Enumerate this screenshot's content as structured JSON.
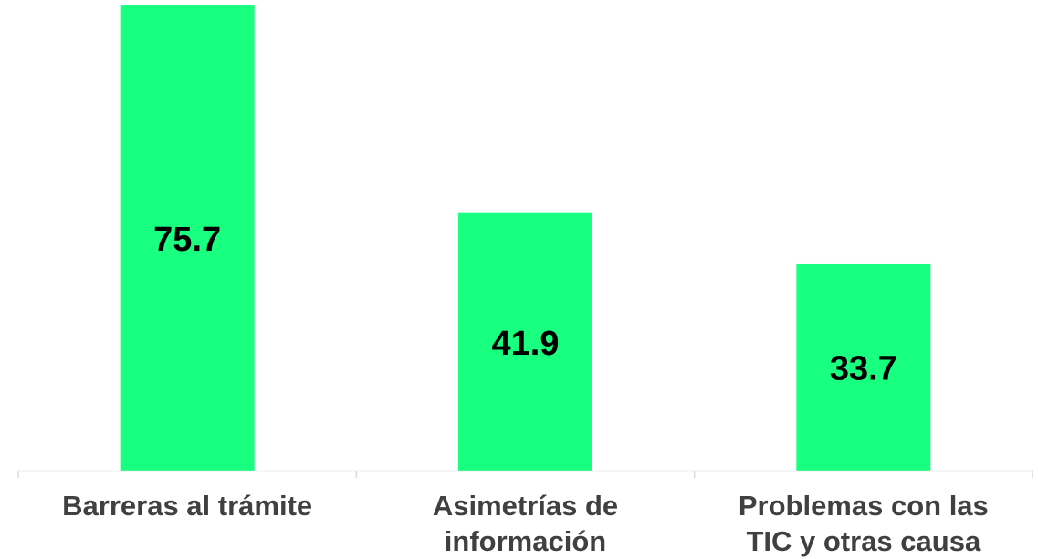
{
  "chart_data": {
    "type": "bar",
    "categories": [
      [
        "Barreras al trámite"
      ],
      [
        "Asimetrías de",
        "información"
      ],
      [
        "Problemas con las",
        "TIC y otras causa"
      ]
    ],
    "values": [
      75.7,
      41.9,
      33.7
    ],
    "data_labels": [
      "75.7",
      "41.9",
      "33.7"
    ],
    "ylim": [
      0,
      75.7
    ],
    "grid": false,
    "legend": "none",
    "colors": {
      "bar": "#19FF7F",
      "axis": "#D9D9D9",
      "value_label": "#000000",
      "category_label": "#404040"
    }
  }
}
